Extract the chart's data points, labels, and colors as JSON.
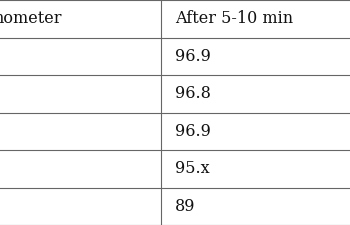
{
  "col1_header": "nometer",
  "col2_header": "After 5-10 min",
  "rows": [
    [
      "",
      "96.9"
    ],
    [
      "",
      "96.8"
    ],
    [
      "",
      "96.9"
    ],
    [
      "",
      "95.x"
    ],
    [
      "",
      "89"
    ]
  ],
  "bg_color": "#e8e8e8",
  "table_bg": "#ffffff",
  "border_color": "#666666",
  "text_color": "#111111",
  "header_fontsize": 11.5,
  "cell_fontsize": 11.5,
  "col_split": 0.46
}
